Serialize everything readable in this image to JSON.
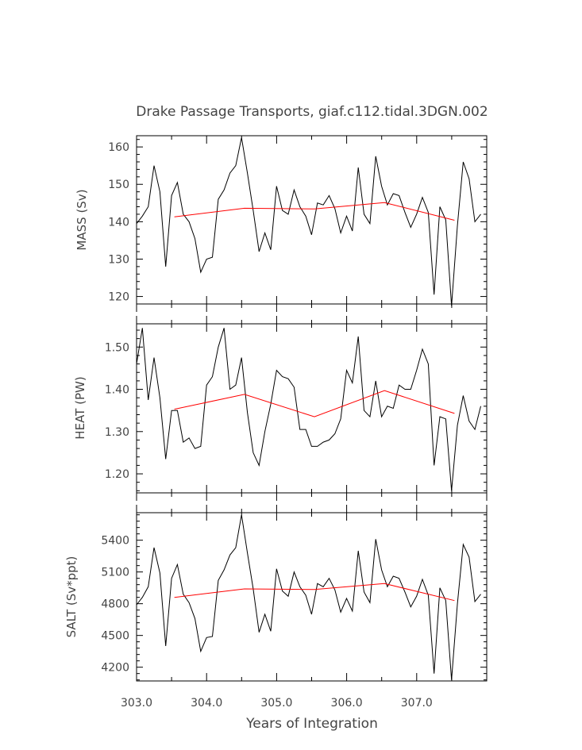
{
  "title": "Drake Passage Transports, giaf.c112.tidal.3DGN.002",
  "colors": {
    "monthly": "#000000",
    "annual": "#ff0000",
    "axis": "#000000",
    "text": "#444444"
  },
  "chart_data": {
    "type": "line",
    "xlabel": "Years of Integration",
    "xlim": [
      303.0,
      308.0
    ],
    "xticks": [
      "303.0",
      "304.0",
      "305.0",
      "306.0",
      "307.0"
    ],
    "x_start": 303.0,
    "x_step": 0.0833,
    "annual_x": [
      303.54,
      304.54,
      305.54,
      306.54,
      307.54
    ],
    "panels": [
      {
        "ylabel": "MASS (Sv)",
        "ylim": [
          118,
          163
        ],
        "yticks": [
          "120",
          "130",
          "140",
          "150",
          "160"
        ],
        "series": [
          {
            "type": "monthly",
            "values": [
              139.5,
              141.5,
              144,
              155,
              148,
              128,
              147,
              150.5,
              142,
              140,
              135.5,
              126.5,
              130,
              130.5,
              146,
              148.5,
              153,
              155,
              162.5,
              153,
              143,
              132,
              137,
              132.5,
              149.5,
              143,
              142,
              148.5,
              144,
              141.5,
              136.5,
              145,
              144.5,
              147,
              143.5,
              137,
              141.5,
              137.5,
              154.5,
              142,
              139.5,
              157.5,
              149.5,
              144.5,
              147.5,
              147,
              142.5,
              138.5,
              142,
              146.5,
              142.5,
              120.5,
              144,
              140.5,
              117.5,
              139,
              156,
              151.5,
              140,
              142
            ]
          },
          {
            "type": "annual",
            "values": [
              141.3,
              143.6,
              143.4,
              145.1,
              140.4
            ]
          }
        ]
      },
      {
        "ylabel": "HEAT (PW)",
        "ylim": [
          1.155,
          1.555
        ],
        "yticks": [
          "1.20",
          "1.30",
          "1.40",
          "1.50"
        ],
        "series": [
          {
            "type": "monthly",
            "values": [
              1.46,
              1.545,
              1.375,
              1.475,
              1.38,
              1.235,
              1.35,
              1.35,
              1.275,
              1.285,
              1.26,
              1.265,
              1.41,
              1.43,
              1.5,
              1.545,
              1.4,
              1.41,
              1.475,
              1.345,
              1.25,
              1.22,
              1.3,
              1.365,
              1.445,
              1.43,
              1.425,
              1.405,
              1.305,
              1.305,
              1.265,
              1.265,
              1.275,
              1.28,
              1.295,
              1.33,
              1.445,
              1.415,
              1.525,
              1.35,
              1.335,
              1.42,
              1.335,
              1.36,
              1.355,
              1.41,
              1.4,
              1.4,
              1.445,
              1.495,
              1.46,
              1.22,
              1.335,
              1.33,
              1.16,
              1.315,
              1.385,
              1.325,
              1.305,
              1.36
            ]
          },
          {
            "type": "annual",
            "values": [
              1.353,
              1.388,
              1.335,
              1.397,
              1.343
            ]
          }
        ]
      },
      {
        "ylabel": "SALT (Sv*ppt)",
        "ylim": [
          4070,
          5660
        ],
        "yticks": [
          "4200",
          "4500",
          "4800",
          "5100",
          "5400"
        ],
        "series": [
          {
            "type": "monthly",
            "values": [
              4790,
              4860,
              4960,
              5330,
              5090,
              4400,
              5040,
              5170,
              4890,
              4810,
              4660,
              4350,
              4480,
              4490,
              5020,
              5120,
              5260,
              5330,
              5640,
              5280,
              4940,
              4530,
              4700,
              4540,
              5130,
              4920,
              4870,
              5100,
              4960,
              4880,
              4700,
              4990,
              4960,
              5040,
              4930,
              4720,
              4850,
              4730,
              5300,
              4910,
              4810,
              5410,
              5120,
              4960,
              5060,
              5040,
              4910,
              4770,
              4870,
              5030,
              4880,
              4140,
              4950,
              4830,
              4080,
              4800,
              5360,
              5240,
              4820,
              4890
            ]
          },
          {
            "type": "annual",
            "values": [
              4860,
              4940,
              4935,
              4990,
              4830
            ]
          }
        ]
      }
    ]
  }
}
